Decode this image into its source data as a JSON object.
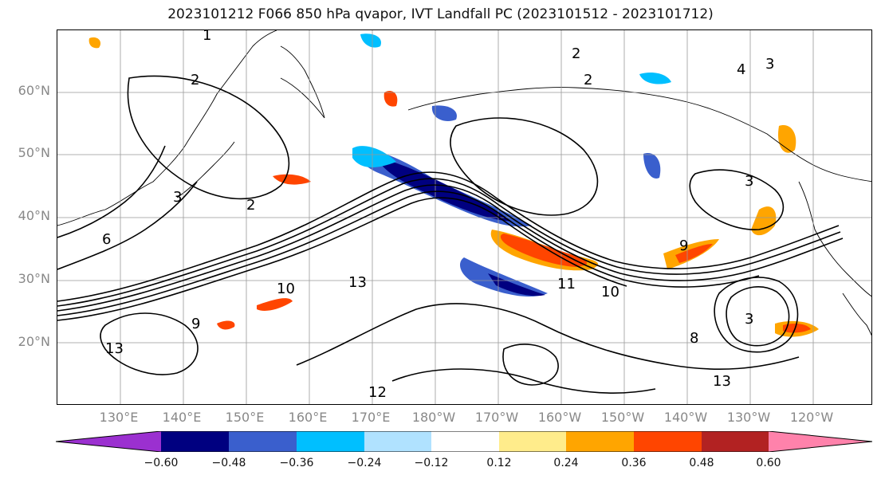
{
  "title": "2023101212 F066 850 hPa qvapor, IVT Landfall PC (2023101512 - 2023101712)",
  "lat_labels": [
    "60°N",
    "50°N",
    "40°N",
    "30°N",
    "20°N"
  ],
  "lon_labels": [
    "130°E",
    "140°E",
    "150°E",
    "160°E",
    "170°E",
    "180°W",
    "170°W",
    "160°W",
    "150°W",
    "140°W",
    "130°W",
    "120°W"
  ],
  "colorbar": {
    "colors": [
      "#9b30d0",
      "#000080",
      "#3a5fcd",
      "#00bfff",
      "#b0e2ff",
      "#ffffff",
      "#ffec8b",
      "#ffa500",
      "#ff4500",
      "#b22222",
      "#ff82ab"
    ],
    "ticks": [
      "−0.60",
      "−0.48",
      "−0.36",
      "−0.24",
      "−0.12",
      "0.12",
      "0.24",
      "0.36",
      "0.48",
      "0.60"
    ]
  },
  "contour_labels": [
    "1",
    "2",
    "2",
    "2",
    "2",
    "3",
    "3",
    "3",
    "3",
    "4",
    "6",
    "8",
    "9",
    "9",
    "10",
    "10",
    "11",
    "12",
    "13",
    "13",
    "13"
  ]
}
